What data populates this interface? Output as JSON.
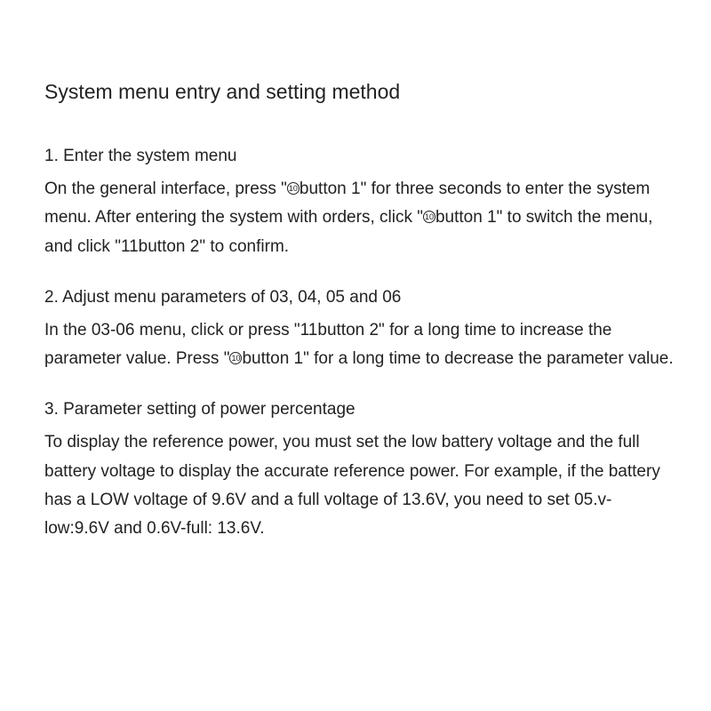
{
  "title": "System menu entry and setting method",
  "sections": [
    {
      "heading": "1. Enter the system menu",
      "body_html": "On the general interface, press \"<span class='icon-ten' data-name='circled-ten-icon' data-interactable='false'>10</span>button 1\" for three seconds to enter the system menu. After entering the system with orders, click \"<span class='icon-ten' data-name='circled-ten-icon' data-interactable='false'>10</span>button 1\" to switch the menu, and click \"11button 2\" to confirm."
    },
    {
      "heading": "2. Adjust menu parameters of 03, 04, 05 and 06",
      "body_html": "In the 03-06 menu, click or press \"11button 2\" for a long time to increase the parameter value. Press \"<span class='icon-ten' data-name='circled-ten-icon' data-interactable='false'>10</span>button 1\" for a long time to decrease the parameter value."
    },
    {
      "heading": "3. Parameter setting of power percentage",
      "body_html": "To display the reference power, you must set the low battery voltage and the full battery voltage to display the accurate reference power. For example, if the battery has a LOW voltage of 9.6V and a full voltage of 13.6V, you need to set 05.v-low:9.6V and 0.6V-full: 13.6V."
    }
  ],
  "style": {
    "background_color": "#ffffff",
    "text_color": "#222222",
    "title_fontsize": 23,
    "heading_fontsize": 19,
    "body_fontsize": 19,
    "line_height": 1.7
  }
}
